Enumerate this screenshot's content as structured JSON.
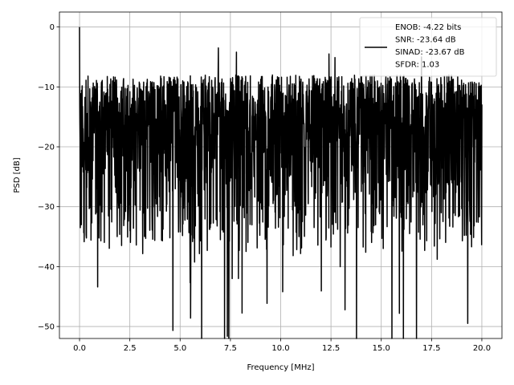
{
  "chart_data": {
    "type": "line",
    "xlabel": "Frequency [MHz]",
    "ylabel": "PSD [dB]",
    "xlim": [
      -1.0,
      21.0
    ],
    "ylim": [
      -52.0,
      2.5
    ],
    "xticks": [
      0.0,
      2.5,
      5.0,
      7.5,
      10.0,
      12.5,
      15.0,
      17.5,
      20.0
    ],
    "xtick_labels": [
      "0.0",
      "2.5",
      "5.0",
      "7.5",
      "10.0",
      "12.5",
      "15.0",
      "17.5",
      "20.0"
    ],
    "yticks": [
      0,
      -10,
      -20,
      -30,
      -40,
      -50
    ],
    "ytick_labels": [
      "0",
      "−10",
      "−20",
      "−30",
      "−40",
      "−50"
    ],
    "grid": true,
    "legend_position": "upper right",
    "series": [
      {
        "name": "ENOB: -4.22 bits\nSNR: -23.64 dB\nSINAD: -23.67 dB\nSFDR: 1.03",
        "legend_lines": [
          "ENOB: -4.22 bits",
          "SNR: -23.64 dB",
          "SINAD: -23.67 dB",
          "SFDR: 1.03"
        ],
        "color": "#000000",
        "x_range": [
          0.0,
          20.0
        ],
        "approx_points": 2000,
        "peak": {
          "x": 0.0,
          "y": 0.0
        },
        "noise_floor_center_db": -19,
        "typical_envelope_db": [
          -30,
          -8
        ],
        "notable_peaks": [
          {
            "x": 6.9,
            "y": -3.5
          },
          {
            "x": 7.8,
            "y": -4.2
          },
          {
            "x": 12.4,
            "y": -4.5
          },
          {
            "x": 12.7,
            "y": -5.1
          },
          {
            "x": 17.0,
            "y": -5.0
          }
        ],
        "notable_dips": [
          {
            "x": 5.5,
            "y": -42.7
          },
          {
            "x": 7.9,
            "y": -42.0
          },
          {
            "x": 10.1,
            "y": -44.2
          },
          {
            "x": 13.2,
            "y": -47.2
          },
          {
            "x": 15.9,
            "y": -47.8
          },
          {
            "x": 19.3,
            "y": -49.5
          }
        ]
      }
    ]
  }
}
